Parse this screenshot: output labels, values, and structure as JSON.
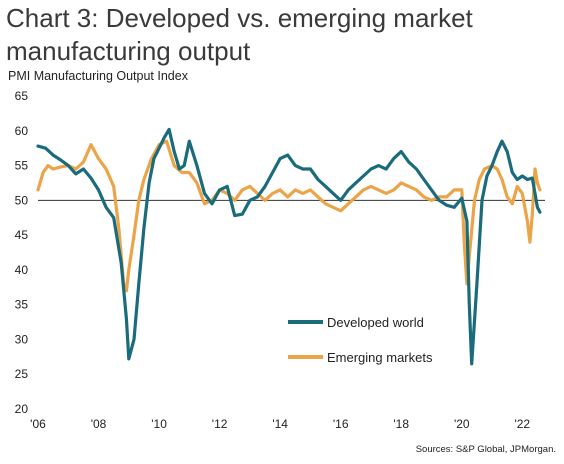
{
  "title": "Chart 3: Developed vs. emerging market manufacturing output",
  "source": "Sources: S&P Global, JPMorgan.",
  "chart_data": {
    "type": "line",
    "title": "Chart 3: Developed vs. emerging market manufacturing output",
    "ylabel": "PMI Manufacturing Output Index",
    "xlabel": "",
    "ylim": [
      20,
      65
    ],
    "xlim": [
      2006.0,
      2022.75
    ],
    "reference_line": 50,
    "y_ticks": [
      "20",
      "25",
      "30",
      "35",
      "40",
      "45",
      "50",
      "55",
      "60",
      "65"
    ],
    "x_ticks": [
      {
        "x": 2006,
        "label": "'06"
      },
      {
        "x": 2008,
        "label": "'08"
      },
      {
        "x": 2010,
        "label": "'10"
      },
      {
        "x": 2012,
        "label": "'12"
      },
      {
        "x": 2014,
        "label": "'14"
      },
      {
        "x": 2016,
        "label": "'16"
      },
      {
        "x": 2018,
        "label": "'18"
      },
      {
        "x": 2020,
        "label": "'20"
      },
      {
        "x": 2022,
        "label": "'22"
      }
    ],
    "legend_position": "lower-center",
    "series": [
      {
        "name": "Developed world",
        "color": "#1a6b7c",
        "points": [
          [
            2006.0,
            57.8
          ],
          [
            2006.25,
            57.5
          ],
          [
            2006.5,
            56.5
          ],
          [
            2006.75,
            55.8
          ],
          [
            2007.0,
            55.0
          ],
          [
            2007.25,
            53.8
          ],
          [
            2007.5,
            54.5
          ],
          [
            2007.75,
            53.2
          ],
          [
            2008.0,
            51.5
          ],
          [
            2008.25,
            49.0
          ],
          [
            2008.5,
            47.5
          ],
          [
            2008.75,
            41.0
          ],
          [
            2008.92,
            33.0
          ],
          [
            2009.0,
            27.2
          ],
          [
            2009.17,
            30.0
          ],
          [
            2009.33,
            38.0
          ],
          [
            2009.5,
            46.0
          ],
          [
            2009.67,
            52.5
          ],
          [
            2009.83,
            56.0
          ],
          [
            2010.0,
            57.5
          ],
          [
            2010.17,
            59.0
          ],
          [
            2010.33,
            60.2
          ],
          [
            2010.5,
            57.0
          ],
          [
            2010.67,
            54.5
          ],
          [
            2010.83,
            55.0
          ],
          [
            2011.0,
            58.5
          ],
          [
            2011.25,
            55.0
          ],
          [
            2011.5,
            51.0
          ],
          [
            2011.75,
            49.5
          ],
          [
            2012.0,
            51.5
          ],
          [
            2012.25,
            52.0
          ],
          [
            2012.5,
            47.8
          ],
          [
            2012.75,
            48.0
          ],
          [
            2013.0,
            50.0
          ],
          [
            2013.25,
            50.5
          ],
          [
            2013.5,
            52.0
          ],
          [
            2013.75,
            54.0
          ],
          [
            2014.0,
            56.0
          ],
          [
            2014.25,
            56.5
          ],
          [
            2014.5,
            55.0
          ],
          [
            2014.75,
            54.5
          ],
          [
            2015.0,
            54.5
          ],
          [
            2015.25,
            53.0
          ],
          [
            2015.5,
            52.0
          ],
          [
            2015.75,
            51.0
          ],
          [
            2016.0,
            50.0
          ],
          [
            2016.25,
            51.5
          ],
          [
            2016.5,
            52.5
          ],
          [
            2016.75,
            53.5
          ],
          [
            2017.0,
            54.5
          ],
          [
            2017.25,
            55.0
          ],
          [
            2017.5,
            54.5
          ],
          [
            2017.75,
            56.0
          ],
          [
            2018.0,
            57.0
          ],
          [
            2018.25,
            55.5
          ],
          [
            2018.5,
            54.5
          ],
          [
            2018.75,
            53.0
          ],
          [
            2019.0,
            51.5
          ],
          [
            2019.25,
            50.0
          ],
          [
            2019.5,
            49.3
          ],
          [
            2019.75,
            49.0
          ],
          [
            2020.0,
            50.3
          ],
          [
            2020.17,
            47.0
          ],
          [
            2020.25,
            35.0
          ],
          [
            2020.33,
            26.5
          ],
          [
            2020.5,
            38.0
          ],
          [
            2020.67,
            50.0
          ],
          [
            2020.83,
            53.5
          ],
          [
            2021.0,
            55.0
          ],
          [
            2021.17,
            57.0
          ],
          [
            2021.33,
            58.5
          ],
          [
            2021.5,
            57.0
          ],
          [
            2021.67,
            54.0
          ],
          [
            2021.83,
            53.0
          ],
          [
            2022.0,
            53.5
          ],
          [
            2022.17,
            53.0
          ],
          [
            2022.33,
            53.2
          ],
          [
            2022.42,
            51.0
          ],
          [
            2022.5,
            49.0
          ],
          [
            2022.58,
            48.3
          ]
        ]
      },
      {
        "name": "Emerging  markets",
        "color": "#eba447",
        "points": [
          [
            2006.0,
            51.5
          ],
          [
            2006.17,
            54.0
          ],
          [
            2006.33,
            55.0
          ],
          [
            2006.5,
            54.5
          ],
          [
            2006.75,
            54.8
          ],
          [
            2007.0,
            55.0
          ],
          [
            2007.25,
            54.5
          ],
          [
            2007.5,
            55.5
          ],
          [
            2007.75,
            58.0
          ],
          [
            2008.0,
            56.0
          ],
          [
            2008.25,
            54.5
          ],
          [
            2008.5,
            52.0
          ],
          [
            2008.67,
            46.0
          ],
          [
            2008.83,
            38.0
          ],
          [
            2008.92,
            37.0
          ],
          [
            2009.0,
            40.0
          ],
          [
            2009.17,
            45.0
          ],
          [
            2009.33,
            50.0
          ],
          [
            2009.5,
            53.0
          ],
          [
            2009.75,
            56.0
          ],
          [
            2010.0,
            58.0
          ],
          [
            2010.25,
            58.5
          ],
          [
            2010.5,
            55.0
          ],
          [
            2010.75,
            54.0
          ],
          [
            2011.0,
            54.0
          ],
          [
            2011.25,
            52.5
          ],
          [
            2011.5,
            49.5
          ],
          [
            2011.75,
            50.0
          ],
          [
            2012.0,
            51.5
          ],
          [
            2012.25,
            51.0
          ],
          [
            2012.5,
            50.0
          ],
          [
            2012.75,
            51.5
          ],
          [
            2013.0,
            52.0
          ],
          [
            2013.25,
            51.0
          ],
          [
            2013.5,
            50.0
          ],
          [
            2013.75,
            51.0
          ],
          [
            2014.0,
            51.5
          ],
          [
            2014.25,
            50.5
          ],
          [
            2014.5,
            51.5
          ],
          [
            2014.75,
            51.0
          ],
          [
            2015.0,
            51.5
          ],
          [
            2015.25,
            50.5
          ],
          [
            2015.5,
            49.5
          ],
          [
            2015.75,
            49.0
          ],
          [
            2016.0,
            48.5
          ],
          [
            2016.25,
            49.5
          ],
          [
            2016.5,
            50.5
          ],
          [
            2016.75,
            51.5
          ],
          [
            2017.0,
            52.0
          ],
          [
            2017.25,
            51.5
          ],
          [
            2017.5,
            51.0
          ],
          [
            2017.75,
            51.5
          ],
          [
            2018.0,
            52.5
          ],
          [
            2018.25,
            52.0
          ],
          [
            2018.5,
            51.5
          ],
          [
            2018.75,
            50.5
          ],
          [
            2019.0,
            50.0
          ],
          [
            2019.25,
            50.5
          ],
          [
            2019.5,
            50.5
          ],
          [
            2019.75,
            51.5
          ],
          [
            2020.0,
            51.5
          ],
          [
            2020.08,
            44.0
          ],
          [
            2020.17,
            38.0
          ],
          [
            2020.25,
            42.0
          ],
          [
            2020.42,
            50.0
          ],
          [
            2020.58,
            53.0
          ],
          [
            2020.75,
            54.5
          ],
          [
            2021.0,
            55.0
          ],
          [
            2021.17,
            54.5
          ],
          [
            2021.33,
            53.0
          ],
          [
            2021.5,
            50.5
          ],
          [
            2021.67,
            49.5
          ],
          [
            2021.83,
            52.0
          ],
          [
            2022.0,
            51.0
          ],
          [
            2022.17,
            47.0
          ],
          [
            2022.25,
            44.0
          ],
          [
            2022.33,
            48.0
          ],
          [
            2022.42,
            54.5
          ],
          [
            2022.5,
            52.5
          ],
          [
            2022.58,
            51.5
          ]
        ]
      }
    ]
  }
}
